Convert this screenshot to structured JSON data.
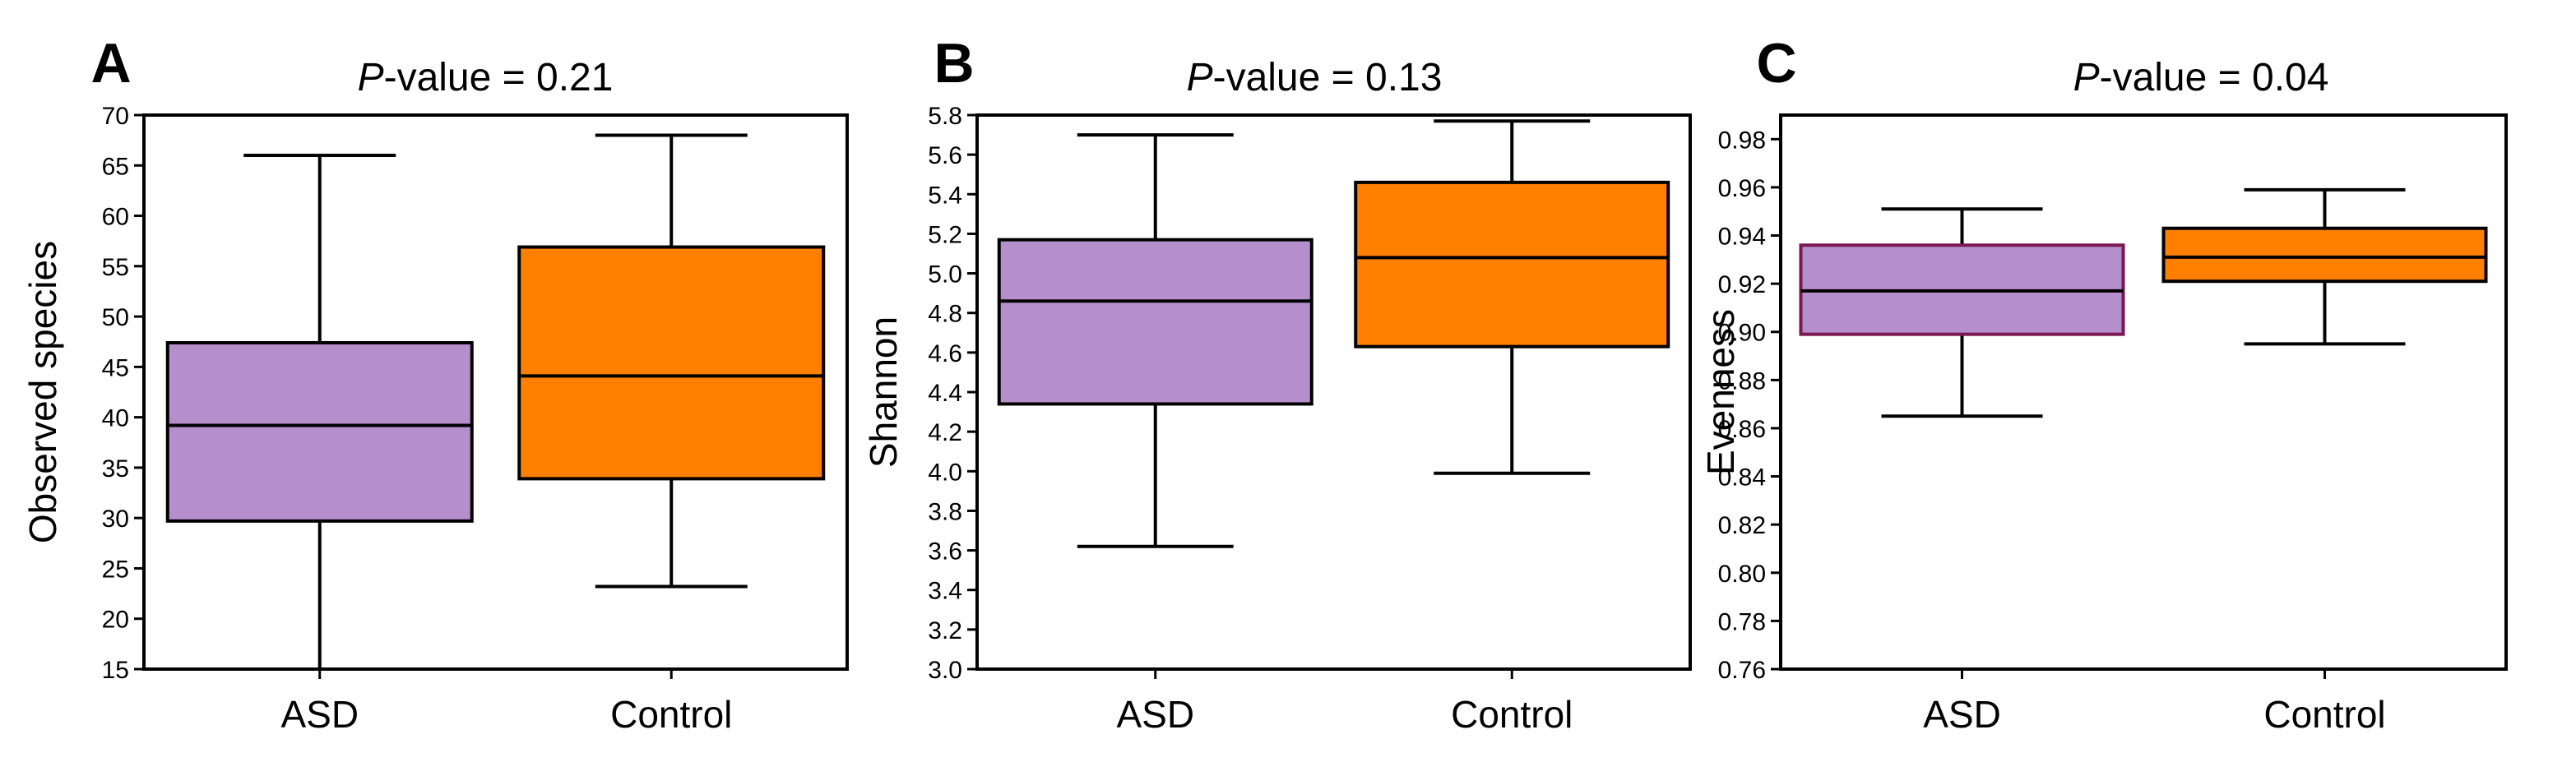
{
  "chart_data": [
    {
      "type": "box",
      "panel": "A",
      "title_prefix": "P",
      "title_suffix": "-value = 0.21",
      "xlabel": "",
      "ylabel": "Observed species",
      "ylim": [
        15,
        70
      ],
      "yticks": [
        "15",
        "20",
        "25",
        "30",
        "35",
        "40",
        "45",
        "50",
        "55",
        "60",
        "65",
        "70"
      ],
      "categories": [
        "ASD",
        "Control"
      ],
      "series": [
        {
          "name": "ASD",
          "min": 15,
          "q1": 29.7,
          "median": 39.2,
          "q3": 47.4,
          "max": 66,
          "fill": "#b58fcc",
          "stroke": "#000000"
        },
        {
          "name": "Control",
          "min": 23.2,
          "q1": 33.9,
          "median": 44.1,
          "q3": 56.9,
          "max": 68,
          "fill": "#ff7f00",
          "stroke": "#000000"
        }
      ]
    },
    {
      "type": "box",
      "panel": "B",
      "title_prefix": "P",
      "title_suffix": "-value = 0.13",
      "xlabel": "",
      "ylabel": "Shannon",
      "ylim": [
        3.0,
        5.8
      ],
      "yticks": [
        "3.0",
        "3.2",
        "3.4",
        "3.6",
        "3.8",
        "4.0",
        "4.2",
        "4.4",
        "4.6",
        "4.8",
        "5.0",
        "5.2",
        "5.4",
        "5.6",
        "5.8"
      ],
      "categories": [
        "ASD",
        "Control"
      ],
      "series": [
        {
          "name": "ASD",
          "min": 3.62,
          "q1": 4.34,
          "median": 4.86,
          "q3": 5.17,
          "max": 5.7,
          "fill": "#b58fcc",
          "stroke": "#000000"
        },
        {
          "name": "Control",
          "min": 3.99,
          "q1": 4.63,
          "median": 5.08,
          "q3": 5.46,
          "max": 5.77,
          "fill": "#ff7f00",
          "stroke": "#000000"
        }
      ]
    },
    {
      "type": "box",
      "panel": "C",
      "title_prefix": "P",
      "title_suffix": "-value = 0.04",
      "xlabel": "",
      "ylabel": "Evenness",
      "ylim": [
        0.76,
        0.99
      ],
      "yticks": [
        "0.76",
        "0.78",
        "0.80",
        "0.82",
        "0.84",
        "0.86",
        "0.88",
        "0.90",
        "0.92",
        "0.94",
        "0.96",
        "0.98"
      ],
      "categories": [
        "ASD",
        "Control"
      ],
      "series": [
        {
          "name": "ASD",
          "min": 0.865,
          "q1": 0.899,
          "median": 0.917,
          "q3": 0.936,
          "max": 0.951,
          "fill": "#b58fcc",
          "stroke": "#7a1850"
        },
        {
          "name": "Control",
          "min": 0.895,
          "q1": 0.921,
          "median": 0.931,
          "q3": 0.943,
          "max": 0.959,
          "fill": "#ff7f00",
          "stroke": "#000000"
        }
      ]
    }
  ]
}
